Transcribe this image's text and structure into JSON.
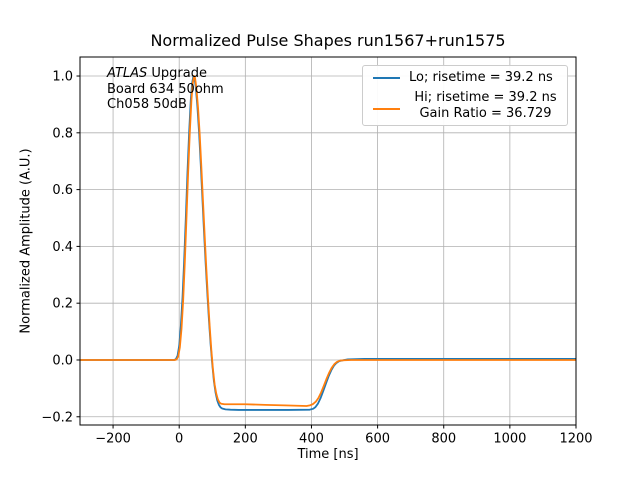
{
  "chart_data": {
    "type": "line",
    "title": "Normalized Pulse Shapes run1567+run1575",
    "xlabel": "Time [ns]",
    "ylabel": "Normalized Amplitude (A.U.)",
    "xlim": [
      -300,
      1200
    ],
    "ylim": [
      -0.229,
      1.067
    ],
    "xticks": [
      -200,
      0,
      200,
      400,
      600,
      800,
      1000,
      1200
    ],
    "xtick_labels": [
      "−200",
      "0",
      "200",
      "400",
      "600",
      "800",
      "1000",
      "1200"
    ],
    "yticks": [
      -0.2,
      0.0,
      0.2,
      0.4,
      0.6,
      0.8,
      1.0
    ],
    "ytick_labels": [
      "−0.2",
      "0.0",
      "0.2",
      "0.4",
      "0.6",
      "0.8",
      "1.0"
    ],
    "grid": true,
    "colors": {
      "grid": "#b0b0b0",
      "axes": "#000000",
      "background": "#ffffff"
    },
    "annotation": {
      "line1_italic": "ATLAS",
      "line1_rest": " Upgrade",
      "line2": "Board 634 50ohm",
      "line3": "Ch058 50dB"
    },
    "legend": {
      "position": "upper right",
      "entries": [
        {
          "label": "Lo; risetime = 39.2 ns",
          "color": "#1f77b4"
        },
        {
          "label": "Hi; risetime = 39.2 ns",
          "label2": "Gain Ratio = 36.729",
          "color": "#ff7f0e"
        }
      ]
    },
    "series": [
      {
        "name": "Lo",
        "color": "#1f77b4",
        "points": [
          [
            -300,
            0
          ],
          [
            -50,
            0
          ],
          [
            -15,
            0
          ],
          [
            -10,
            0.003
          ],
          [
            -5,
            0.015
          ],
          [
            0,
            0.05
          ],
          [
            5,
            0.12
          ],
          [
            10,
            0.22
          ],
          [
            15,
            0.35
          ],
          [
            20,
            0.5
          ],
          [
            25,
            0.66
          ],
          [
            30,
            0.8
          ],
          [
            35,
            0.915
          ],
          [
            39,
            0.975
          ],
          [
            43,
            1.0
          ],
          [
            46,
            0.995
          ],
          [
            50,
            0.962
          ],
          [
            55,
            0.893
          ],
          [
            60,
            0.803
          ],
          [
            65,
            0.693
          ],
          [
            70,
            0.573
          ],
          [
            75,
            0.453
          ],
          [
            80,
            0.34
          ],
          [
            85,
            0.235
          ],
          [
            90,
            0.14
          ],
          [
            95,
            0.055
          ],
          [
            100,
            -0.015
          ],
          [
            105,
            -0.075
          ],
          [
            110,
            -0.115
          ],
          [
            115,
            -0.142
          ],
          [
            120,
            -0.158
          ],
          [
            125,
            -0.167
          ],
          [
            130,
            -0.171
          ],
          [
            140,
            -0.174
          ],
          [
            155,
            -0.175
          ],
          [
            180,
            -0.176
          ],
          [
            250,
            -0.176
          ],
          [
            330,
            -0.176
          ],
          [
            395,
            -0.175
          ],
          [
            405,
            -0.172
          ],
          [
            412,
            -0.166
          ],
          [
            420,
            -0.153
          ],
          [
            428,
            -0.133
          ],
          [
            436,
            -0.108
          ],
          [
            444,
            -0.082
          ],
          [
            452,
            -0.057
          ],
          [
            460,
            -0.036
          ],
          [
            468,
            -0.02
          ],
          [
            476,
            -0.01
          ],
          [
            484,
            -0.004
          ],
          [
            495,
            -0.001
          ],
          [
            510,
            0.002
          ],
          [
            560,
            0.004
          ],
          [
            800,
            0.004
          ],
          [
            1200,
            0.004
          ]
        ]
      },
      {
        "name": "Hi",
        "color": "#ff7f0e",
        "points": [
          [
            -300,
            0
          ],
          [
            -50,
            0
          ],
          [
            -13,
            0
          ],
          [
            -8,
            0.002
          ],
          [
            -3,
            0.012
          ],
          [
            2,
            0.045
          ],
          [
            7,
            0.11
          ],
          [
            12,
            0.21
          ],
          [
            17,
            0.345
          ],
          [
            22,
            0.5
          ],
          [
            27,
            0.66
          ],
          [
            32,
            0.8
          ],
          [
            37,
            0.915
          ],
          [
            41,
            0.975
          ],
          [
            45,
            1.0
          ],
          [
            48,
            0.993
          ],
          [
            52,
            0.958
          ],
          [
            57,
            0.888
          ],
          [
            62,
            0.795
          ],
          [
            67,
            0.68
          ],
          [
            72,
            0.558
          ],
          [
            77,
            0.438
          ],
          [
            82,
            0.323
          ],
          [
            87,
            0.218
          ],
          [
            92,
            0.122
          ],
          [
            97,
            0.038
          ],
          [
            102,
            -0.032
          ],
          [
            107,
            -0.085
          ],
          [
            112,
            -0.118
          ],
          [
            117,
            -0.139
          ],
          [
            122,
            -0.15
          ],
          [
            127,
            -0.154
          ],
          [
            137,
            -0.156
          ],
          [
            155,
            -0.156
          ],
          [
            200,
            -0.156
          ],
          [
            260,
            -0.158
          ],
          [
            320,
            -0.16
          ],
          [
            385,
            -0.162
          ],
          [
            395,
            -0.16
          ],
          [
            405,
            -0.155
          ],
          [
            413,
            -0.147
          ],
          [
            421,
            -0.134
          ],
          [
            429,
            -0.115
          ],
          [
            437,
            -0.092
          ],
          [
            445,
            -0.068
          ],
          [
            453,
            -0.046
          ],
          [
            461,
            -0.028
          ],
          [
            469,
            -0.015
          ],
          [
            477,
            -0.007
          ],
          [
            487,
            -0.002
          ],
          [
            500,
            -0.001
          ],
          [
            520,
            0
          ],
          [
            800,
            0
          ],
          [
            1200,
            0
          ]
        ]
      }
    ]
  }
}
